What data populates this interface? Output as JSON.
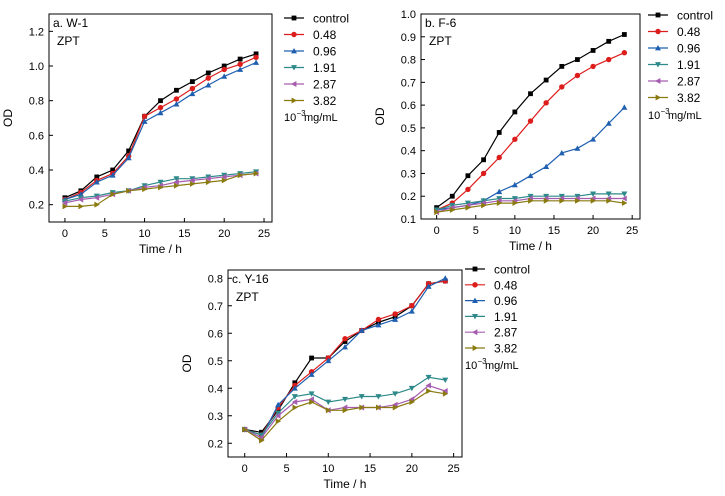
{
  "chart_data": [
    {
      "type": "line",
      "panel_label": "a. W-1",
      "inner_label": "ZPT",
      "xlabel": "Time / h",
      "ylabel": "OD",
      "xlim": [
        -2,
        26
      ],
      "ylim": [
        0.1,
        1.3
      ],
      "xticks": [
        0,
        5,
        10,
        15,
        20,
        25
      ],
      "yticks": [
        0.2,
        0.4,
        0.6,
        0.8,
        1.0,
        1.2
      ],
      "ytick_labels": [
        "0.2",
        "0.4",
        "0.6",
        "0.8",
        "1.0",
        "1.2"
      ],
      "legend_position": "top-right outside",
      "legend_note": {
        "prefix": "10",
        "exp": "−3",
        "suffix": " mg/mL"
      },
      "x": [
        0,
        2,
        4,
        6,
        8,
        10,
        12,
        14,
        16,
        18,
        20,
        22,
        24
      ],
      "series": [
        {
          "name": "control",
          "color": "#000000",
          "marker": "square",
          "values": [
            0.24,
            0.28,
            0.36,
            0.4,
            0.51,
            0.71,
            0.8,
            0.86,
            0.91,
            0.96,
            1.0,
            1.04,
            1.07
          ]
        },
        {
          "name": "0.48",
          "color": "#dd1c1c",
          "marker": "circle",
          "values": [
            0.23,
            0.27,
            0.34,
            0.38,
            0.48,
            0.71,
            0.76,
            0.81,
            0.87,
            0.93,
            0.98,
            1.01,
            1.05
          ]
        },
        {
          "name": "0.96",
          "color": "#1f5fb0",
          "marker": "triangle-up",
          "values": [
            0.23,
            0.26,
            0.33,
            0.37,
            0.47,
            0.68,
            0.73,
            0.78,
            0.84,
            0.89,
            0.94,
            0.98,
            1.02
          ]
        },
        {
          "name": "1.91",
          "color": "#2e8a8a",
          "marker": "triangle-down",
          "values": [
            0.22,
            0.24,
            0.25,
            0.27,
            0.28,
            0.31,
            0.33,
            0.35,
            0.35,
            0.36,
            0.37,
            0.38,
            0.39
          ]
        },
        {
          "name": "2.87",
          "color": "#a65db0",
          "marker": "triangle-left",
          "values": [
            0.21,
            0.23,
            0.24,
            0.26,
            0.28,
            0.3,
            0.31,
            0.33,
            0.34,
            0.35,
            0.36,
            0.37,
            0.38
          ]
        },
        {
          "name": "3.82",
          "color": "#8a7a10",
          "marker": "triangle-right",
          "values": [
            0.19,
            0.19,
            0.2,
            0.26,
            0.28,
            0.29,
            0.3,
            0.31,
            0.32,
            0.33,
            0.34,
            0.37,
            0.38
          ]
        }
      ]
    },
    {
      "type": "line",
      "panel_label": "b. F-6",
      "inner_label": "ZPT",
      "xlabel": "Time / h",
      "ylabel": "OD",
      "xlim": [
        -2,
        26
      ],
      "ylim": [
        0.1,
        1.0
      ],
      "xticks": [
        0,
        5,
        10,
        15,
        20,
        25
      ],
      "yticks": [
        0.1,
        0.2,
        0.3,
        0.4,
        0.5,
        0.6,
        0.7,
        0.8,
        0.9,
        1.0
      ],
      "ytick_labels": [
        "0.1",
        "0.2",
        "0.3",
        "0.4",
        "0.5",
        "0.6",
        "0.7",
        "0.8",
        "0.9",
        "1.0"
      ],
      "legend_position": "top-right outside",
      "legend_note": {
        "prefix": "10",
        "exp": "−3",
        "suffix": " mg/mL"
      },
      "x": [
        0,
        2,
        4,
        6,
        8,
        10,
        12,
        14,
        16,
        18,
        20,
        22,
        24
      ],
      "series": [
        {
          "name": "control",
          "color": "#000000",
          "marker": "square",
          "values": [
            0.15,
            0.2,
            0.29,
            0.36,
            0.48,
            0.57,
            0.65,
            0.71,
            0.77,
            0.8,
            0.84,
            0.88,
            0.91
          ]
        },
        {
          "name": "0.48",
          "color": "#dd1c1c",
          "marker": "circle",
          "values": [
            0.14,
            0.17,
            0.23,
            0.3,
            0.37,
            0.45,
            0.53,
            0.61,
            0.68,
            0.73,
            0.77,
            0.8,
            0.83
          ]
        },
        {
          "name": "0.96",
          "color": "#1f5fb0",
          "marker": "triangle-up",
          "values": [
            0.14,
            0.15,
            0.16,
            0.18,
            0.22,
            0.25,
            0.29,
            0.33,
            0.39,
            0.41,
            0.45,
            0.52,
            0.59
          ]
        },
        {
          "name": "1.91",
          "color": "#2e8a8a",
          "marker": "triangle-down",
          "values": [
            0.14,
            0.16,
            0.17,
            0.18,
            0.19,
            0.19,
            0.2,
            0.2,
            0.2,
            0.2,
            0.21,
            0.21,
            0.21
          ]
        },
        {
          "name": "2.87",
          "color": "#a65db0",
          "marker": "triangle-left",
          "values": [
            0.13,
            0.15,
            0.16,
            0.17,
            0.18,
            0.18,
            0.19,
            0.19,
            0.19,
            0.19,
            0.19,
            0.19,
            0.19
          ]
        },
        {
          "name": "3.82",
          "color": "#8a7a10",
          "marker": "triangle-right",
          "values": [
            0.13,
            0.14,
            0.15,
            0.16,
            0.17,
            0.17,
            0.18,
            0.18,
            0.18,
            0.18,
            0.18,
            0.18,
            0.17
          ]
        }
      ]
    },
    {
      "type": "line",
      "panel_label": "c. Y-16",
      "inner_label": "ZPT",
      "xlabel": "Time / h",
      "ylabel": "OD",
      "xlim": [
        -2,
        26
      ],
      "ylim": [
        0.15,
        0.83
      ],
      "xticks": [
        0,
        5,
        10,
        15,
        20,
        25
      ],
      "yticks": [
        0.2,
        0.3,
        0.4,
        0.5,
        0.6,
        0.7,
        0.8
      ],
      "ytick_labels": [
        "0.2",
        "0.3",
        "0.4",
        "0.5",
        "0.6",
        "0.7",
        "0.8"
      ],
      "legend_position": "right outside",
      "legend_note": {
        "prefix": "10",
        "exp": "−3",
        "suffix": " mg/mL"
      },
      "x": [
        0,
        2,
        4,
        6,
        8,
        10,
        12,
        14,
        16,
        18,
        20,
        22,
        24
      ],
      "series": [
        {
          "name": "control",
          "color": "#000000",
          "marker": "square",
          "values": [
            0.25,
            0.24,
            0.32,
            0.42,
            0.51,
            0.51,
            0.57,
            0.61,
            0.64,
            0.66,
            0.7,
            0.78,
            0.79
          ]
        },
        {
          "name": "0.48",
          "color": "#dd1c1c",
          "marker": "circle",
          "values": [
            0.25,
            0.23,
            0.33,
            0.41,
            0.46,
            0.51,
            0.58,
            0.61,
            0.65,
            0.67,
            0.7,
            0.78,
            0.79
          ]
        },
        {
          "name": "0.96",
          "color": "#1f5fb0",
          "marker": "triangle-up",
          "values": [
            0.25,
            0.22,
            0.34,
            0.4,
            0.45,
            0.5,
            0.55,
            0.61,
            0.63,
            0.65,
            0.68,
            0.77,
            0.8
          ]
        },
        {
          "name": "1.91",
          "color": "#2e8a8a",
          "marker": "triangle-down",
          "values": [
            0.25,
            0.23,
            0.31,
            0.37,
            0.38,
            0.35,
            0.36,
            0.37,
            0.37,
            0.38,
            0.4,
            0.44,
            0.43
          ]
        },
        {
          "name": "2.87",
          "color": "#a65db0",
          "marker": "triangle-left",
          "values": [
            0.25,
            0.22,
            0.3,
            0.35,
            0.36,
            0.32,
            0.33,
            0.33,
            0.33,
            0.34,
            0.36,
            0.41,
            0.39
          ]
        },
        {
          "name": "3.82",
          "color": "#8a7a10",
          "marker": "triangle-right",
          "values": [
            0.25,
            0.21,
            0.28,
            0.33,
            0.35,
            0.32,
            0.32,
            0.33,
            0.33,
            0.33,
            0.35,
            0.39,
            0.38
          ]
        }
      ]
    }
  ]
}
